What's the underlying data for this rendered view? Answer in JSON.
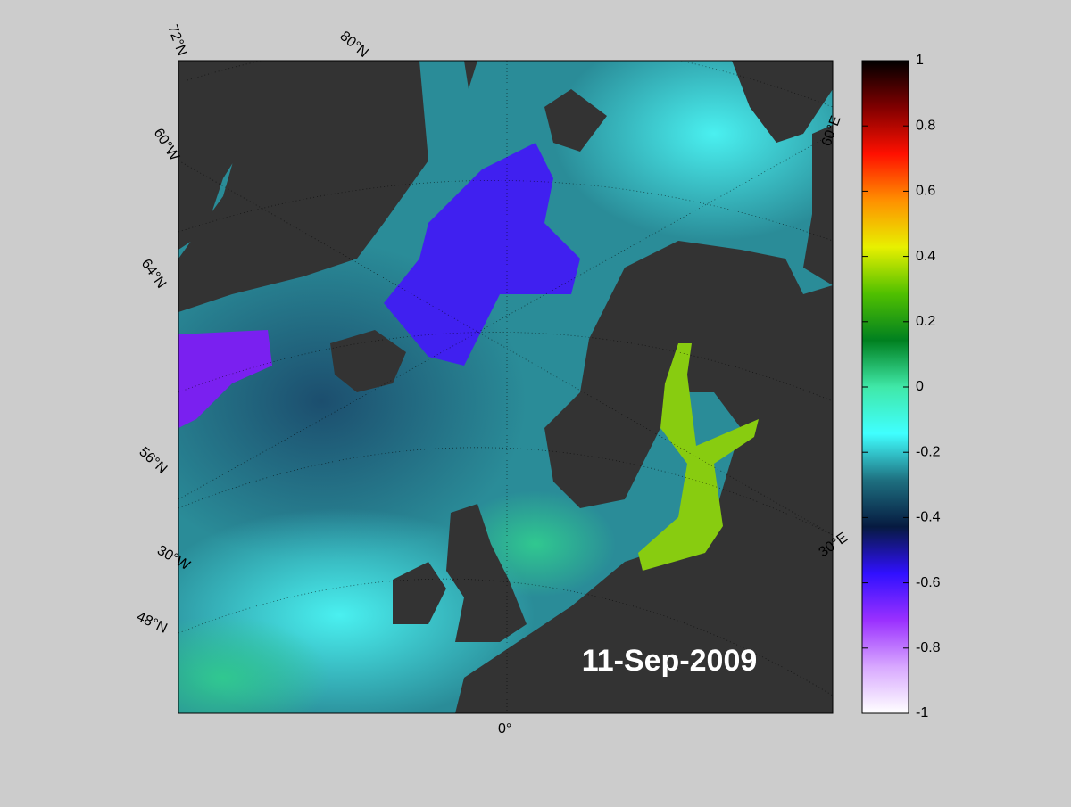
{
  "map": {
    "date": "11-Sep-2009",
    "grid_labels": [
      "72°N",
      "80°N",
      "60°W",
      "64°N",
      "56°N",
      "30°W",
      "48°N",
      "0°",
      "30°E",
      "60°E"
    ]
  },
  "colorbar": {
    "ticks": [
      -1,
      -0.8,
      -0.6,
      -0.4,
      -0.2,
      0,
      0.2,
      0.4,
      0.6,
      0.8,
      1
    ],
    "colors": [
      "#ffffff",
      "#d8a8ff",
      "#9a30ff",
      "#3010ff",
      "#061a40",
      "#1e7080",
      "#40ffff",
      "#40e8a8",
      "#008020",
      "#50c000",
      "#e8f000",
      "#ff9000",
      "#ff1000",
      "#800000",
      "#000000"
    ]
  }
}
